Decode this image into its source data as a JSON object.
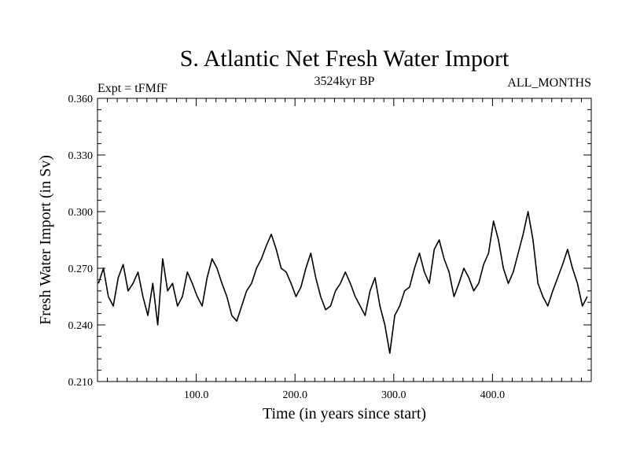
{
  "chart_data": {
    "type": "line",
    "title": "S. Atlantic Net Fresh Water Import",
    "subtitle_left": "Expt = tFMfF",
    "subtitle_center": "3524kyr BP",
    "subtitle_right": "ALL_MONTHS",
    "xlabel": "Time (in years since start)",
    "ylabel": "Fresh Water Import (in Sv)",
    "xlim": [
      0,
      500
    ],
    "ylim": [
      0.21,
      0.36
    ],
    "x_ticks": [
      100,
      200,
      300,
      400
    ],
    "x_tick_labels": [
      "100.0",
      "200.0",
      "300.0",
      "400.0"
    ],
    "y_ticks": [
      0.21,
      0.24,
      0.27,
      0.3,
      0.33,
      0.36
    ],
    "y_tick_labels": [
      "0.210",
      "0.240",
      "0.270",
      "0.300",
      "0.330",
      "0.360"
    ],
    "grid": false,
    "series": [
      {
        "name": "S. Atlantic net fresh water import",
        "x_start": 1,
        "x_step": 5,
        "values": [
          0.262,
          0.27,
          0.255,
          0.25,
          0.265,
          0.272,
          0.258,
          0.262,
          0.268,
          0.255,
          0.245,
          0.262,
          0.24,
          0.275,
          0.258,
          0.262,
          0.25,
          0.255,
          0.268,
          0.262,
          0.255,
          0.25,
          0.265,
          0.275,
          0.27,
          0.262,
          0.255,
          0.245,
          0.242,
          0.25,
          0.258,
          0.262,
          0.27,
          0.275,
          0.282,
          0.288,
          0.28,
          0.27,
          0.268,
          0.262,
          0.255,
          0.26,
          0.27,
          0.278,
          0.265,
          0.255,
          0.248,
          0.25,
          0.258,
          0.262,
          0.268,
          0.262,
          0.255,
          0.25,
          0.245,
          0.258,
          0.265,
          0.25,
          0.24,
          0.225,
          0.245,
          0.25,
          0.258,
          0.26,
          0.27,
          0.278,
          0.268,
          0.262,
          0.28,
          0.285,
          0.275,
          0.268,
          0.255,
          0.262,
          0.27,
          0.265,
          0.258,
          0.262,
          0.272,
          0.278,
          0.295,
          0.285,
          0.27,
          0.262,
          0.268,
          0.278,
          0.288,
          0.3,
          0.285,
          0.262,
          0.255,
          0.25,
          0.258,
          0.265,
          0.272,
          0.28,
          0.27,
          0.262,
          0.25,
          0.255
        ]
      }
    ]
  }
}
